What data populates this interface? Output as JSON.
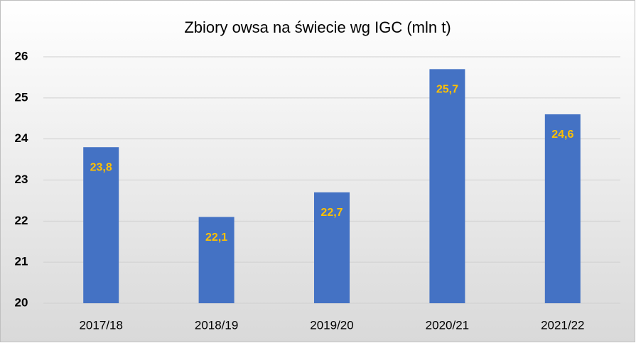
{
  "chart_data": {
    "type": "bar",
    "title": "Zbiory owsa na świecie wg IGC (mln t)",
    "categories": [
      "2017/18",
      "2018/19",
      "2019/20",
      "2020/21",
      "2021/22"
    ],
    "values": [
      23.8,
      22.1,
      22.7,
      25.7,
      24.6
    ],
    "value_labels": [
      "23,8",
      "22,1",
      "22,7",
      "25,7",
      "24,6"
    ],
    "color": "#4472c4",
    "label_color": "#ffc000",
    "ylim": [
      20,
      26
    ],
    "yticks": [
      20,
      21,
      22,
      23,
      24,
      25,
      26
    ],
    "grid": true
  }
}
